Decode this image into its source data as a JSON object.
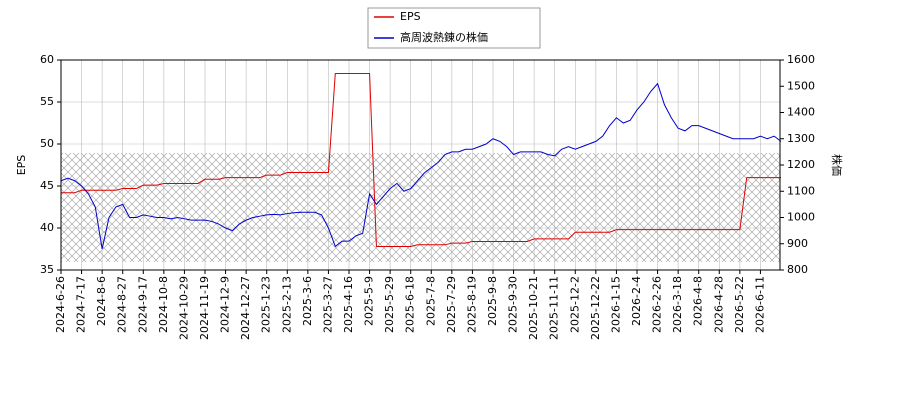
{
  "chart_data": {
    "type": "line",
    "categories": [
      "2024-6-26",
      null,
      null,
      "2024-7-17",
      null,
      null,
      "2024-8-6",
      null,
      null,
      "2024-8-27",
      null,
      null,
      "2024-9-17",
      null,
      null,
      "2024-10-8",
      null,
      null,
      "2024-10-29",
      null,
      null,
      "2024-11-19",
      null,
      null,
      "2024-12-9",
      null,
      null,
      "2024-12-27",
      null,
      null,
      "2025-1-23",
      null,
      null,
      "2025-2-13",
      null,
      null,
      "2025-3-6",
      null,
      null,
      "2025-3-27",
      null,
      null,
      "2025-4-16",
      null,
      null,
      "2025-5-9",
      null,
      null,
      "2025-5-29",
      null,
      null,
      "2025-6-18",
      null,
      null,
      "2025-7-8",
      null,
      null,
      "2025-7-29",
      null,
      null,
      "2025-8-19",
      null,
      null,
      "2025-9-8",
      null,
      null,
      "2025-9-30",
      null,
      null,
      "2025-10-21",
      null,
      null,
      "2025-11-11",
      null,
      null,
      "2025-12-2",
      null,
      null,
      "2025-12-22",
      null,
      null,
      "2026-1-15",
      null,
      null,
      "2026-2-4",
      null,
      null,
      "2026-2-26",
      null,
      null,
      "2026-3-18",
      null,
      null,
      "2026-4-8",
      null,
      null,
      "2026-4-28",
      null,
      null,
      "2026-5-22",
      null,
      null,
      "2026-6-11",
      null,
      null,
      null
    ],
    "series": [
      {
        "name": "EPS",
        "color": "#dd0000",
        "values": [
          44.2,
          44.2,
          44.2,
          44.5,
          44.5,
          44.5,
          44.5,
          44.5,
          44.5,
          44.7,
          44.7,
          44.7,
          45.1,
          45.1,
          45.1,
          45.3,
          45.3,
          45.3,
          45.3,
          45.3,
          45.3,
          45.8,
          45.8,
          45.8,
          46.0,
          46.0,
          46.0,
          46.0,
          46.0,
          46.0,
          46.3,
          46.3,
          46.3,
          46.6,
          46.6,
          46.6,
          46.6,
          46.6,
          46.6,
          46.6,
          58.4,
          58.4,
          58.4,
          58.4,
          58.4,
          58.4,
          37.8,
          37.8,
          37.8,
          37.8,
          37.8,
          37.8,
          38.0,
          38.0,
          38.0,
          38.0,
          38.0,
          38.2,
          38.2,
          38.2,
          38.4,
          38.4,
          38.4,
          38.4,
          38.4,
          38.4,
          38.4,
          38.4,
          38.4,
          38.7,
          38.7,
          38.7,
          38.7,
          38.7,
          38.7,
          39.5,
          39.5,
          39.5,
          39.5,
          39.5,
          39.5,
          39.8,
          39.8,
          39.8,
          39.8,
          39.8,
          39.8,
          39.8,
          39.8,
          39.8,
          39.8,
          39.8,
          39.8,
          39.8,
          39.8,
          39.8,
          39.8,
          39.8,
          39.8,
          39.8,
          46.0,
          46.0,
          46.0,
          46.0,
          46.0,
          46.0
        ]
      },
      {
        "name": "高周波熱錬の株価",
        "color": "#0000cc",
        "axis": "y2",
        "values": [
          1140,
          1150,
          1140,
          1120,
          1090,
          1040,
          880,
          1000,
          1040,
          1050,
          1000,
          1000,
          1010,
          1005,
          1000,
          1000,
          995,
          1000,
          995,
          990,
          990,
          990,
          985,
          975,
          960,
          950,
          975,
          990,
          1000,
          1005,
          1010,
          1012,
          1010,
          1015,
          1018,
          1020,
          1020,
          1020,
          1010,
          960,
          890,
          910,
          910,
          930,
          940,
          1090,
          1050,
          1080,
          1110,
          1130,
          1100,
          1110,
          1140,
          1170,
          1190,
          1210,
          1240,
          1250,
          1250,
          1260,
          1260,
          1270,
          1280,
          1300,
          1290,
          1270,
          1240,
          1250,
          1250,
          1250,
          1250,
          1240,
          1235,
          1260,
          1270,
          1260,
          1270,
          1280,
          1290,
          1310,
          1350,
          1380,
          1360,
          1370,
          1410,
          1440,
          1480,
          1510,
          1430,
          1380,
          1340,
          1330,
          1350,
          1350,
          1340,
          1330,
          1320,
          1310,
          1300,
          1300,
          1300,
          1300,
          1310,
          1300,
          1310,
          1290
        ]
      }
    ],
    "y_label": "EPS",
    "y2_label": "株価",
    "ylim": [
      35,
      60
    ],
    "yticks": [
      35,
      40,
      45,
      50,
      55,
      60
    ],
    "y2lim": [
      800,
      1600
    ],
    "y2ticks": [
      800,
      900,
      1000,
      1100,
      1200,
      1300,
      1400,
      1500,
      1600
    ],
    "grid": true
  }
}
